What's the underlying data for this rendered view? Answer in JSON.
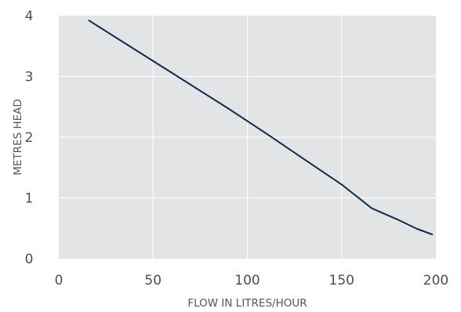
{
  "chart_data": {
    "type": "line",
    "title": "",
    "xlabel": "FLOW IN LITRES/HOUR",
    "ylabel": "METRES HEAD",
    "xlim": [
      0,
      200
    ],
    "ylim": [
      0,
      4
    ],
    "xticks": [
      "0",
      "50",
      "100",
      "150",
      "200"
    ],
    "yticks": [
      "0",
      "1",
      "2",
      "3",
      "4"
    ],
    "grid": true,
    "legend": "none",
    "series": [
      {
        "x": [
          16,
          40,
          63,
          90,
          110,
          130,
          150,
          166,
          180,
          190,
          198
        ],
        "y": [
          3.92,
          3.45,
          3.0,
          2.47,
          2.06,
          1.64,
          1.22,
          0.83,
          0.64,
          0.49,
          0.4
        ]
      }
    ],
    "colors": {
      "plot_background": "#e3e4e6",
      "grid": "#ffffff",
      "line": "#0f2a4f"
    }
  }
}
